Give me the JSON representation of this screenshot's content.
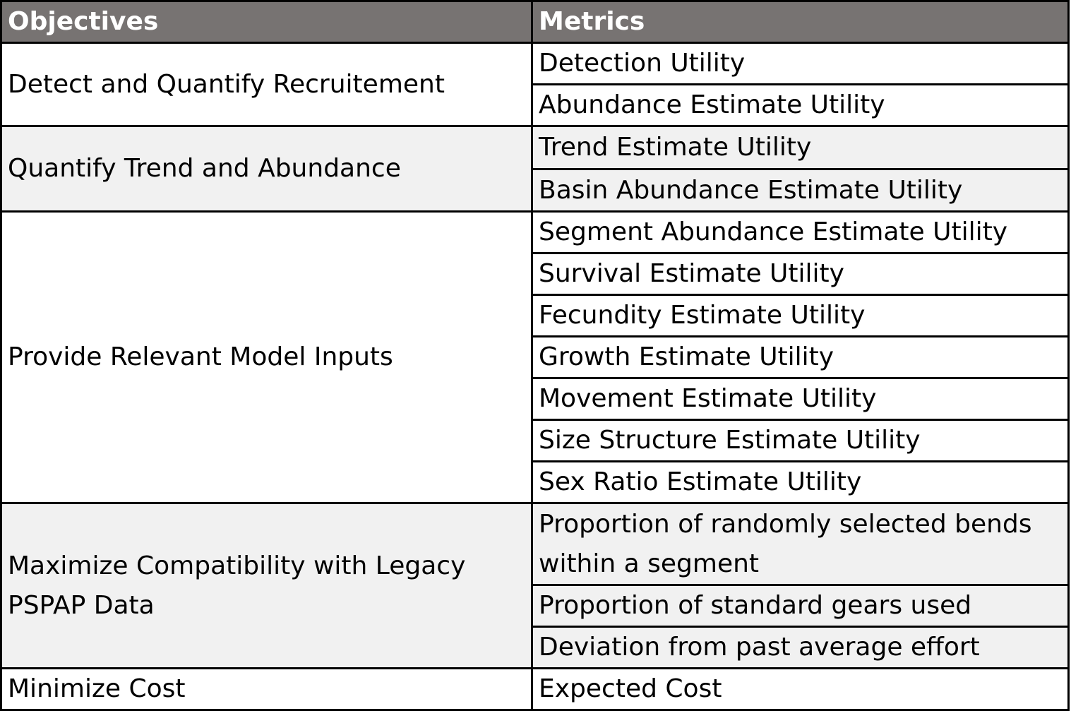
{
  "table": {
    "headers": {
      "objectives": "Objectives",
      "metrics": "Metrics"
    },
    "groups": [
      {
        "objective": "Detect and Quantify Recruitement",
        "metrics": [
          "Detection Utility",
          "Abundance Estimate Utility"
        ]
      },
      {
        "objective": "Quantify Trend and Abundance",
        "metrics": [
          "Trend Estimate Utility",
          "Basin Abundance Estimate Utility"
        ]
      },
      {
        "objective": "Provide Relevant Model Inputs",
        "metrics": [
          "Segment Abundance Estimate Utility",
          "Survival Estimate Utility",
          "Fecundity Estimate Utility",
          "Growth Estimate Utility",
          "Movement Estimate Utility",
          "Size Structure Estimate Utility",
          "Sex Ratio Estimate Utility"
        ]
      },
      {
        "objective_line1": "Maximize Compatibility with Legacy",
        "objective_line2": "PSPAP Data",
        "metrics": [
          "Proportion of randomly selected bends",
          "within a segment",
          "Proportion of standard gears used",
          "Deviation from past average effort"
        ]
      },
      {
        "objective": "Minimize Cost",
        "metrics": [
          "Expected Cost"
        ]
      }
    ],
    "colors": {
      "header_bg": "#777372",
      "header_text": "#ffffff",
      "shaded_row": "#f1f1f1",
      "border": "#000000"
    }
  }
}
